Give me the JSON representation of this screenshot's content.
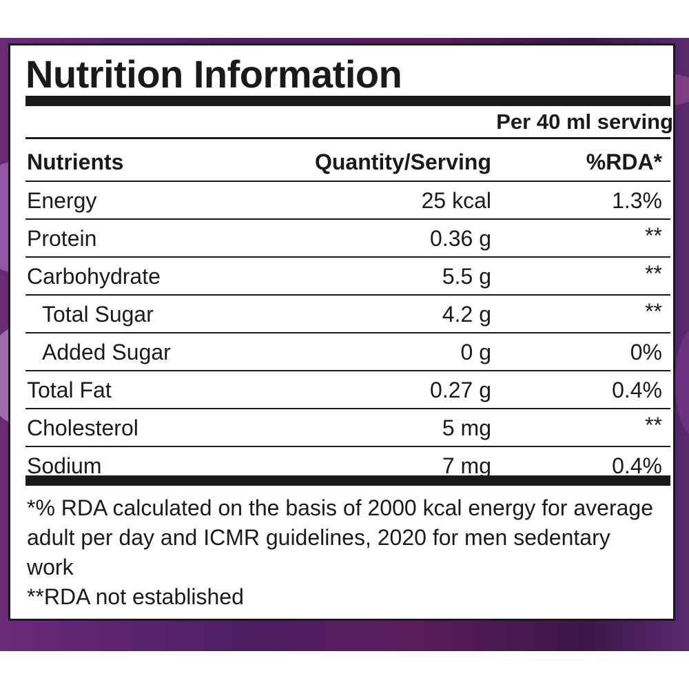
{
  "label": {
    "title": "Nutrition Information",
    "serving": "Per 40 ml serving",
    "headers": {
      "nutrients": "Nutrients",
      "quantity": "Quantity/Serving",
      "rda": "%RDA*"
    },
    "rows": [
      {
        "name": "Energy",
        "quantity": "25 kcal",
        "rda": "1.3%",
        "indent": false
      },
      {
        "name": "Protein",
        "quantity": "0.36 g",
        "rda": "**",
        "indent": false
      },
      {
        "name": "Carbohydrate",
        "quantity": "5.5 g",
        "rda": "**",
        "indent": false
      },
      {
        "name": "Total Sugar",
        "quantity": "4.2 g",
        "rda": "**",
        "indent": true
      },
      {
        "name": "Added Sugar",
        "quantity": "0 g",
        "rda": "0%",
        "indent": true
      },
      {
        "name": "Total Fat",
        "quantity": "0.27 g",
        "rda": "0.4%",
        "indent": false
      },
      {
        "name": "Cholesterol",
        "quantity": "5 mg",
        "rda": "**",
        "indent": false
      },
      {
        "name": "Sodium",
        "quantity": "7 mg",
        "rda": "0.4%",
        "indent": false
      }
    ],
    "footnotes": [
      "*% RDA calculated on the basis of 2000 kcal energy for average adult per day and ICMR guidelines, 2020 for men sedentary work",
      "**RDA not established"
    ]
  },
  "colors": {
    "ink": "#1a1a1a",
    "panel": "#ffffff",
    "packaging": "#4d1f63"
  }
}
